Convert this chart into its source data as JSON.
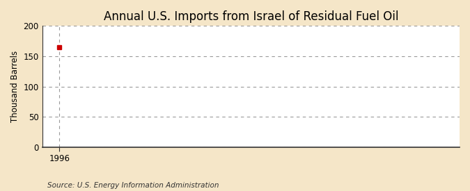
{
  "title": "Annual U.S. Imports from Israel of Residual Fuel Oil",
  "ylabel": "Thousand Barrels",
  "source": "Source: U.S. Energy Information Administration",
  "x_data": [
    1996
  ],
  "y_data": [
    165
  ],
  "xlim": [
    1995.4,
    2010
  ],
  "ylim": [
    0,
    200
  ],
  "yticks": [
    0,
    50,
    100,
    150,
    200
  ],
  "xticks": [
    1996
  ],
  "data_color": "#cc0000",
  "fig_bg_color": "#f5e6c8",
  "plot_bg_color": "#ffffff",
  "grid_color": "#999999",
  "spine_color": "#333333",
  "title_fontsize": 12,
  "label_fontsize": 8.5,
  "tick_fontsize": 8.5,
  "source_fontsize": 7.5,
  "marker": "s",
  "marker_size": 4
}
